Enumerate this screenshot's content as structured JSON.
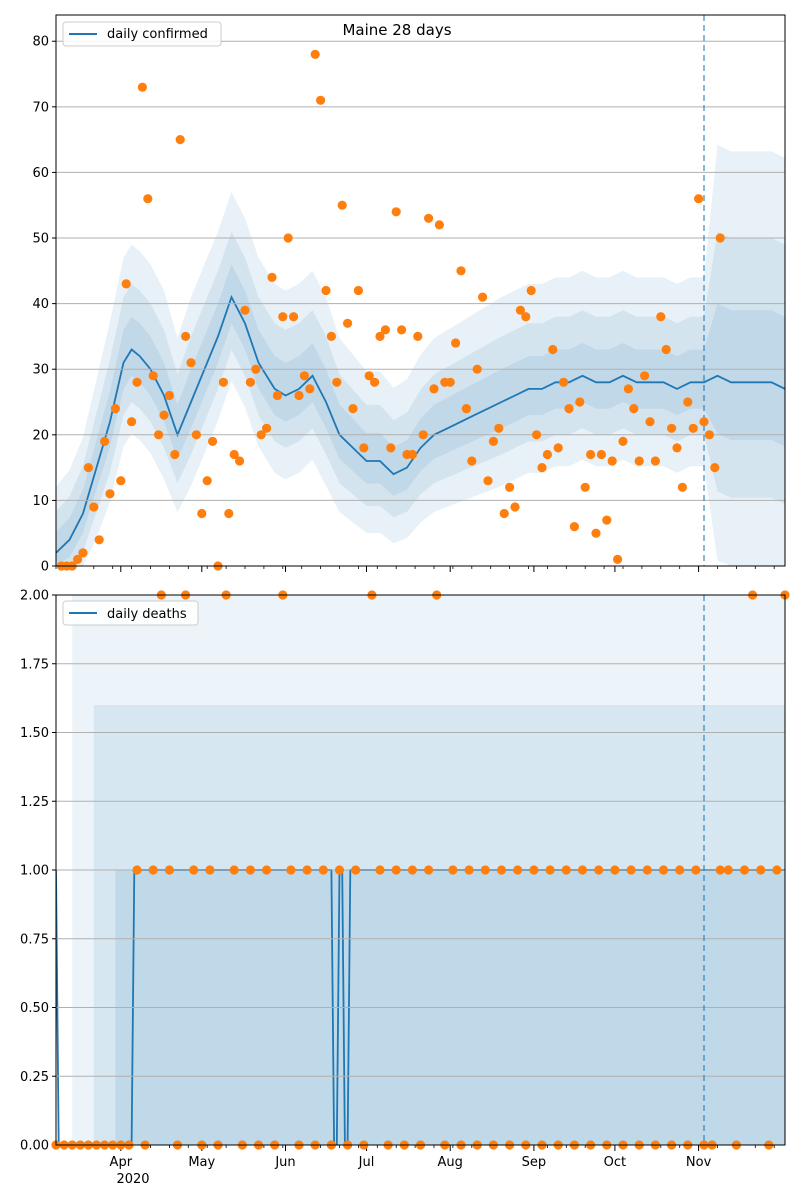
{
  "chart_data": [
    {
      "type": "line",
      "title": "Maine 28 days",
      "xlabel": "",
      "ylabel": "",
      "ylim": [
        0,
        84
      ],
      "yticks": [
        0,
        10,
        20,
        30,
        40,
        50,
        60,
        70,
        80
      ],
      "ytick_labels": [
        "0",
        "10",
        "20",
        "30",
        "40",
        "50",
        "60",
        "70",
        "80"
      ],
      "grid": "horizontal",
      "legend_position": "top-left",
      "vline_day": 240,
      "series": [
        {
          "name": "daily confirmed",
          "kind": "line",
          "color": "#1f77b4",
          "x": [
            0,
            5,
            10,
            15,
            20,
            25,
            28,
            31,
            35,
            40,
            45,
            50,
            55,
            60,
            65,
            70,
            75,
            78,
            81,
            85,
            90,
            95,
            100,
            105,
            110,
            115,
            120,
            125,
            130,
            135,
            140,
            145,
            150,
            155,
            160,
            165,
            170,
            175,
            180,
            185,
            190,
            195,
            200,
            205,
            210,
            215,
            220,
            225,
            230,
            235,
            240,
            245,
            250,
            255,
            260,
            265,
            270
          ],
          "values": [
            2,
            4,
            8,
            15,
            22,
            31,
            33,
            32,
            30,
            26,
            20,
            25,
            30,
            35,
            41,
            37,
            31,
            29,
            27,
            26,
            27,
            29,
            25,
            20,
            18,
            16,
            16,
            14,
            15,
            18,
            20,
            21,
            22,
            23,
            24,
            25,
            26,
            27,
            27,
            28,
            28,
            29,
            28,
            28,
            29,
            28,
            28,
            28,
            27,
            28,
            28,
            29,
            28,
            28,
            28,
            28,
            27
          ]
        },
        {
          "name": "",
          "kind": "scatter",
          "color": "#ff7f0e",
          "x": [
            2,
            4,
            6,
            8,
            10,
            12,
            14,
            16,
            18,
            20,
            22,
            24,
            26,
            28,
            30,
            32,
            34,
            36,
            38,
            40,
            42,
            44,
            46,
            48,
            50,
            52,
            54,
            56,
            58,
            60,
            62,
            64,
            66,
            68,
            70,
            72,
            74,
            76,
            78,
            80,
            82,
            84,
            86,
            88,
            90,
            92,
            94,
            96,
            98,
            100,
            102,
            104,
            106,
            108,
            110,
            112,
            114,
            116,
            118,
            120,
            122,
            124,
            126,
            128,
            130,
            132,
            134,
            136,
            138,
            140,
            142,
            144,
            146,
            148,
            150,
            152,
            154,
            156,
            158,
            160,
            162,
            164,
            166,
            168,
            170,
            172,
            174,
            176,
            178,
            180,
            182,
            184,
            186,
            188,
            190,
            192,
            194,
            196,
            198,
            200,
            202,
            204,
            206,
            208,
            210,
            212,
            214,
            216,
            218,
            220,
            222,
            224,
            226,
            228,
            230,
            232,
            234,
            236,
            238,
            240,
            242,
            244,
            246
          ],
          "values": [
            0,
            0,
            0,
            1,
            2,
            15,
            9,
            4,
            19,
            11,
            24,
            13,
            43,
            22,
            28,
            73,
            56,
            29,
            20,
            23,
            26,
            17,
            65,
            35,
            31,
            20,
            8,
            13,
            19,
            0,
            28,
            8,
            17,
            16,
            39,
            28,
            30,
            20,
            21,
            44,
            26,
            38,
            50,
            38,
            26,
            29,
            27,
            78,
            71,
            42,
            35,
            28,
            55,
            37,
            24,
            42,
            18,
            29,
            28,
            35,
            36,
            18,
            54,
            36,
            17,
            17,
            35,
            20,
            53,
            27,
            52,
            28,
            28,
            34,
            45,
            24,
            16,
            30,
            41,
            13,
            19,
            21,
            8,
            12,
            9,
            39,
            38,
            42,
            20,
            15,
            17,
            33,
            18,
            28,
            24,
            6,
            25,
            12,
            17,
            5,
            17,
            7,
            16,
            1,
            19,
            27,
            24,
            16,
            29,
            22,
            16,
            38,
            33,
            21,
            18,
            12,
            25,
            21,
            56,
            22,
            20,
            15,
            50
          ]
        }
      ]
    },
    {
      "type": "line",
      "title": "",
      "xlabel": "",
      "ylabel": "",
      "ylim": [
        0,
        2
      ],
      "yticks": [
        0,
        0.25,
        0.5,
        0.75,
        1.0,
        1.25,
        1.5,
        1.75,
        2.0
      ],
      "ytick_labels": [
        "0.00",
        "0.25",
        "0.50",
        "0.75",
        "1.00",
        "1.25",
        "1.50",
        "1.75",
        "2.00"
      ],
      "grid": "horizontal",
      "legend_position": "top-left",
      "vline_day": 240,
      "series": [
        {
          "name": "daily deaths",
          "kind": "line",
          "color": "#1f77b4",
          "x": [
            0,
            1,
            28,
            29,
            102,
            103,
            104,
            105,
            106,
            107,
            108,
            109,
            270
          ],
          "values": [
            1,
            0,
            0,
            1,
            1,
            0,
            0,
            1,
            1,
            0,
            0,
            1,
            1
          ]
        },
        {
          "name": "",
          "kind": "scatter",
          "color": "#ff7f0e",
          "x": [
            0,
            3,
            6,
            9,
            12,
            15,
            18,
            21,
            24,
            27,
            30,
            33,
            36,
            39,
            42,
            45,
            48,
            51,
            54,
            57,
            60,
            63,
            66,
            69,
            72,
            75,
            78,
            81,
            84,
            87,
            90,
            93,
            96,
            99,
            102,
            105,
            108,
            111,
            114,
            117,
            120,
            123,
            126,
            129,
            132,
            135,
            138,
            141,
            144,
            147,
            150,
            153,
            156,
            159,
            162,
            165,
            168,
            171,
            174,
            177,
            180,
            183,
            186,
            189,
            192,
            195,
            198,
            201,
            204,
            207,
            210,
            213,
            216,
            219,
            222,
            225,
            228,
            231,
            234,
            237,
            240,
            243,
            246,
            249,
            252,
            255,
            258,
            261,
            264,
            267,
            270
          ],
          "values": [
            0,
            0,
            0,
            0,
            0,
            0,
            0,
            0,
            0,
            0,
            1,
            0,
            1,
            2,
            1,
            0,
            2,
            1,
            0,
            1,
            0,
            2,
            1,
            0,
            1,
            0,
            1,
            0,
            2,
            1,
            0,
            1,
            0,
            1,
            0,
            1,
            0,
            1,
            0,
            2,
            1,
            0,
            1,
            0,
            1,
            0,
            1,
            2,
            0,
            1,
            0,
            1,
            0,
            1,
            0,
            1,
            0,
            1,
            0,
            1,
            0,
            1,
            0,
            1,
            0,
            1,
            0,
            1,
            0,
            1,
            0,
            1,
            0,
            1,
            0,
            1,
            0,
            1,
            0,
            1,
            0,
            0,
            1,
            1,
            0,
            1,
            2,
            1,
            0,
            1,
            2
          ]
        }
      ]
    }
  ],
  "x_axis": {
    "start": "2020-03-08",
    "end": "2020-12-03",
    "month_ticks": [
      {
        "day": 24,
        "label": "Apr"
      },
      {
        "day": 54,
        "label": "May"
      },
      {
        "day": 85,
        "label": "Jun"
      },
      {
        "day": 115,
        "label": "Jul"
      },
      {
        "day": 146,
        "label": "Aug"
      },
      {
        "day": 177,
        "label": "Sep"
      },
      {
        "day": 207,
        "label": "Oct"
      },
      {
        "day": 238,
        "label": "Nov"
      }
    ],
    "year_label": "2020"
  },
  "colors": {
    "line": "#1f77b4",
    "points": "#ff7f0e",
    "band": "#1f77b4",
    "grid": "#b0b0b0",
    "vline": "#1f77b4"
  }
}
